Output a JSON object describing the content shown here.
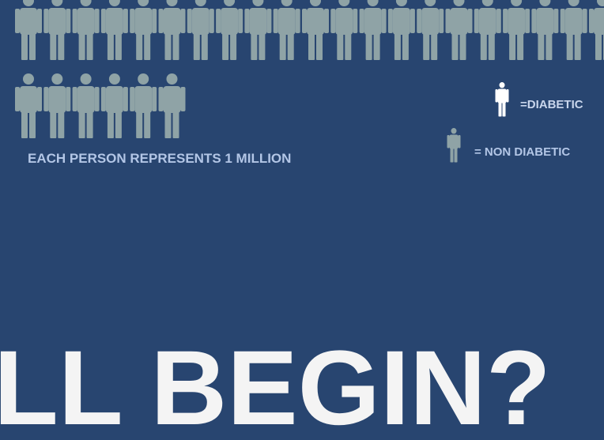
{
  "caption": "EACH PERSON REPRESENTS 1 MILLION",
  "legend": [
    {
      "label": "=DIABETIC"
    },
    {
      "label": "= NON DIABETIC"
    }
  ],
  "headline": "LL BEGIN?"
}
